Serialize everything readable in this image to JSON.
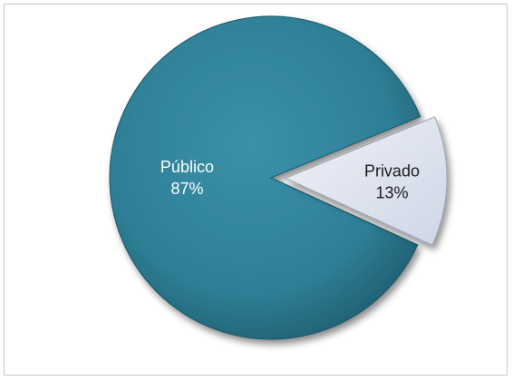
{
  "chart_data": {
    "type": "pie",
    "title": "",
    "legend": "none",
    "exploded": [
      "Privado"
    ],
    "slices": [
      {
        "label": "Público",
        "percent_label": "87%",
        "value": 87,
        "color": "#2e7f96",
        "text_color": "#ffffff"
      },
      {
        "label": "Privado",
        "percent_label": "13%",
        "value": 13,
        "color": "#dbe1ee",
        "text_color": "#1a1a1a"
      }
    ]
  }
}
